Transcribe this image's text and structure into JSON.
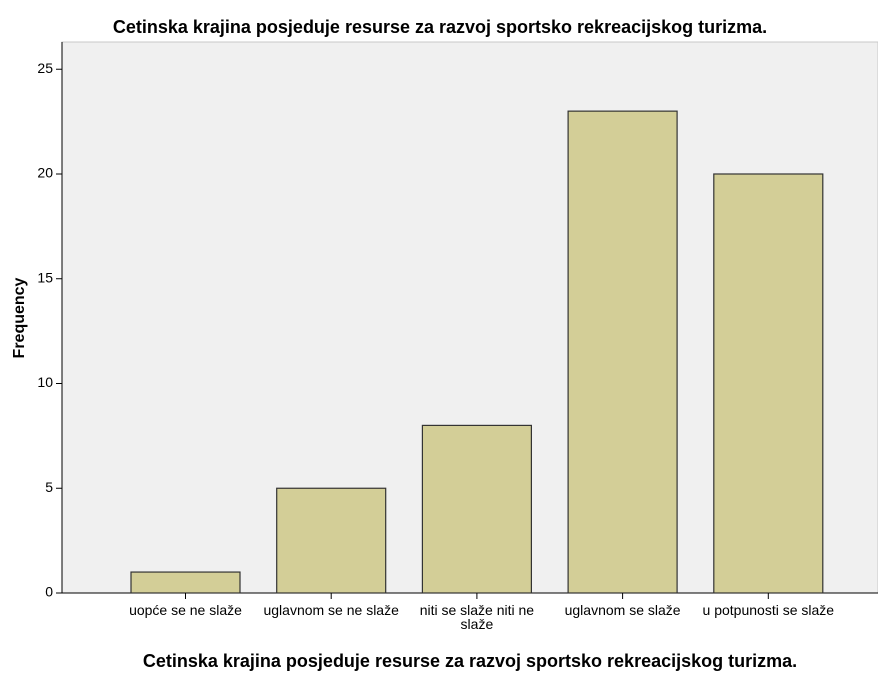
{
  "chart_data": {
    "type": "bar",
    "title": "Cetinska krajina posjeduje resurse za razvoj sportsko rekreacijskog turizma.",
    "x_label": "Cetinska krajina posjeduje resurse za razvoj sportsko rekreacijskog turizma.",
    "y_label": "Frequency",
    "categories": [
      "uopće se ne slaže",
      "uglavnom se ne slaže",
      "niti se slaže niti ne slaže",
      "uglavnom se slaže",
      "u potpunosti se slaže"
    ],
    "values": [
      1,
      5,
      8,
      23,
      20
    ],
    "color": "#d3ce97",
    "ylim": [
      0,
      26.3
    ],
    "yticks": [
      0,
      5,
      10,
      15,
      20,
      25
    ],
    "grid": false
  }
}
